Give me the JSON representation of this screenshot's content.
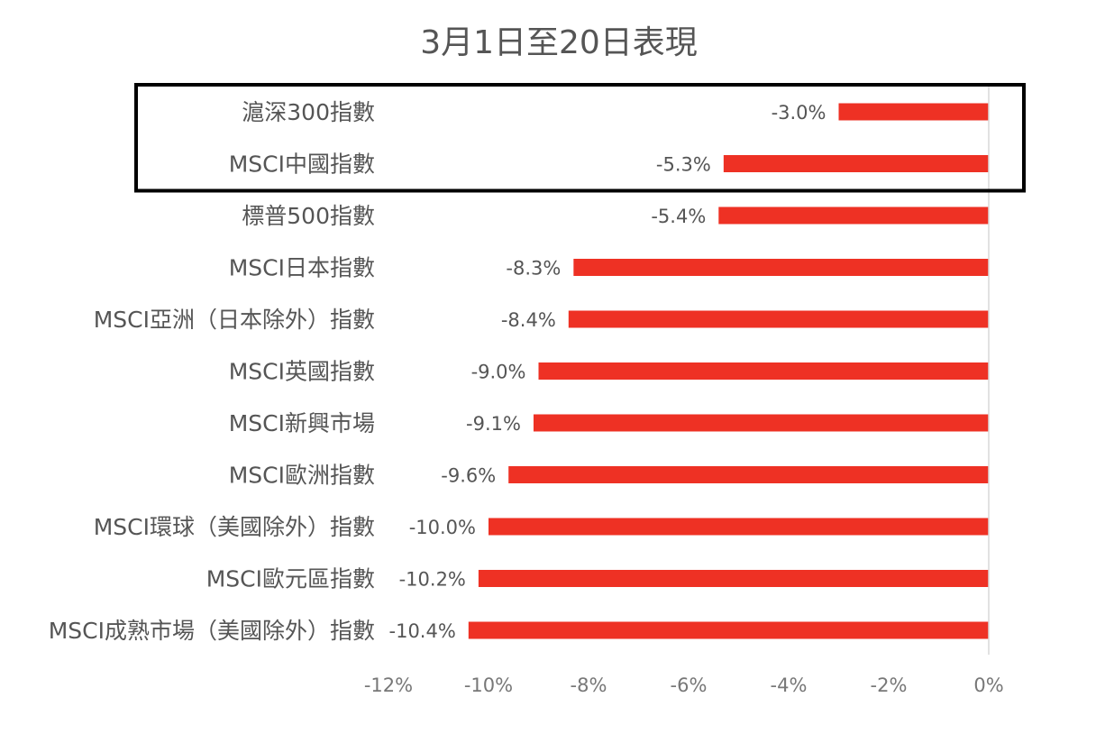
{
  "chart_data": {
    "type": "bar",
    "orientation": "horizontal",
    "title": "3月1日至20日表現",
    "categories": [
      "滬深300指數",
      "MSCI中國指數",
      "標普500指數",
      "MSCI日本指數",
      "MSCI亞洲（日本除外）指數",
      "MSCI英國指數",
      "MSCI新興市場",
      "MSCI歐洲指數",
      "MSCI環球（美國除外）指數",
      "MSCI歐元區指數",
      "MSCI成熟市場（美國除外）指數"
    ],
    "values": [
      -3.0,
      -5.3,
      -5.4,
      -8.3,
      -8.4,
      -9.0,
      -9.1,
      -9.6,
      -10.0,
      -10.2,
      -10.4
    ],
    "data_labels": [
      "-3.0%",
      "-5.3%",
      "-5.4%",
      "-8.3%",
      "-8.4%",
      "-9.0%",
      "-9.1%",
      "-9.6%",
      "-10.0%",
      "-10.2%",
      "-10.4%"
    ],
    "xlim": [
      -12,
      0
    ],
    "xticks": [
      -12,
      -10,
      -8,
      -6,
      -4,
      -2,
      0
    ],
    "xtick_labels": [
      "-12%",
      "-10%",
      "-8%",
      "-6%",
      "-4%",
      "-2%",
      "0%"
    ],
    "xlabel": "",
    "ylabel": "",
    "bar_color": "#ee3124",
    "highlight_box_categories": [
      "滬深300指數",
      "MSCI中國指數"
    ],
    "grid": false,
    "legend": "none"
  }
}
